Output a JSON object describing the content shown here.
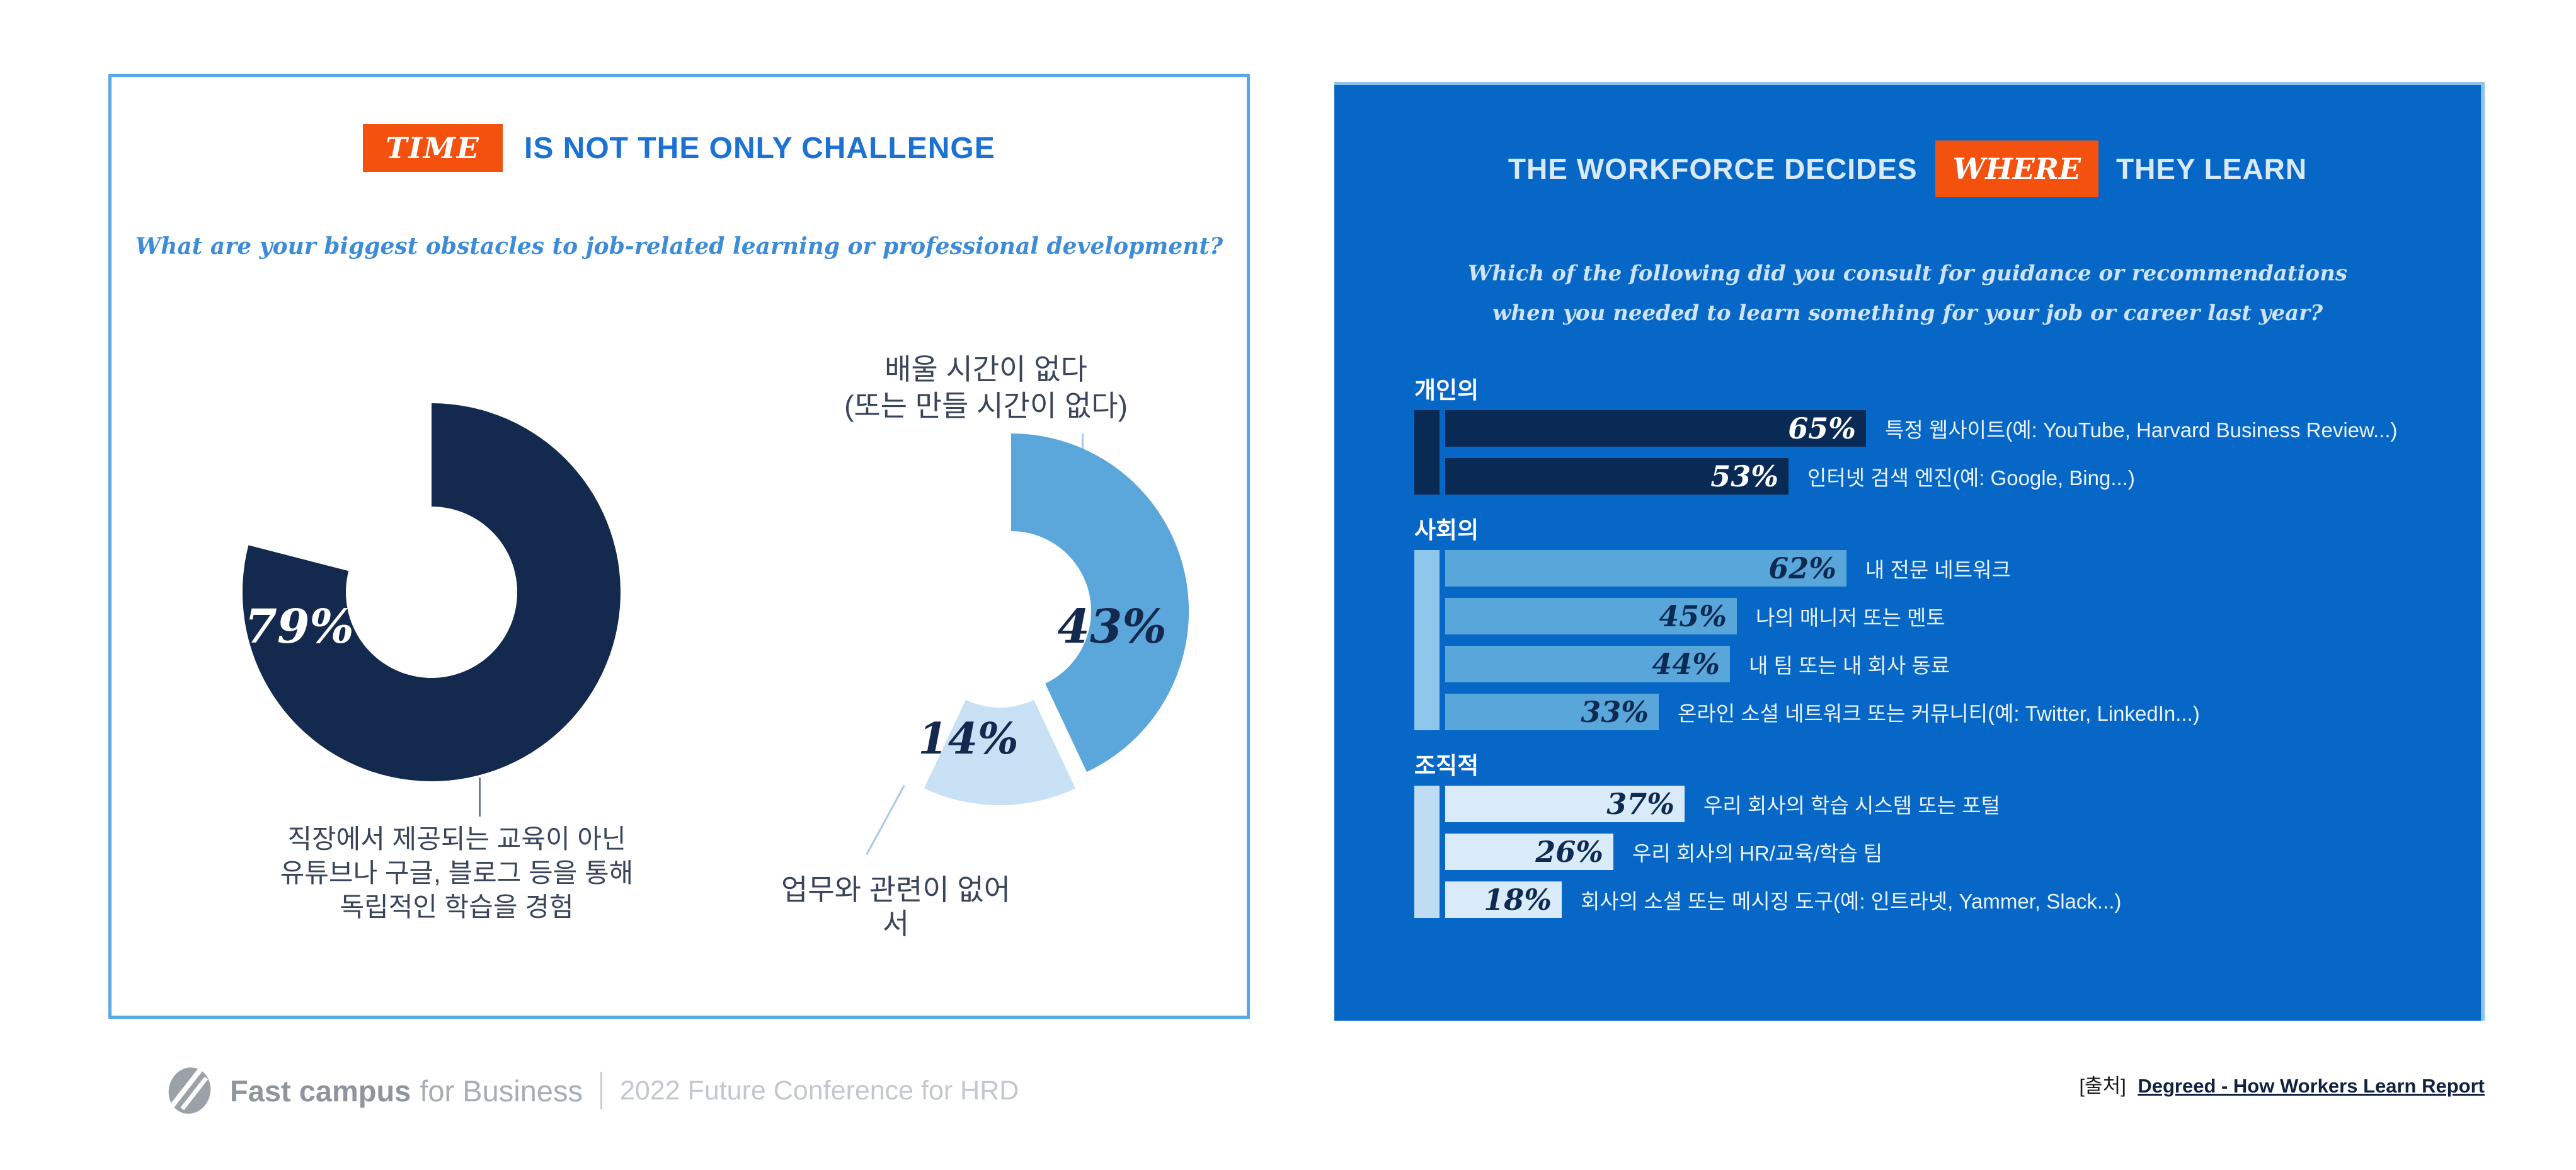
{
  "left_panel": {
    "title_highlight": "TIME",
    "title_rest": "IS NOT THE ONLY CHALLENGE",
    "subtitle": "What are your biggest obstacles to job-related learning or professional development?",
    "donut1": {
      "value_label": "79%",
      "caption_lines": [
        "직장에서 제공되는 교육이 아닌",
        "유튜브나 구글, 블로그 등을 통해",
        "독립적인 학습을 경험"
      ]
    },
    "donut2": {
      "value_main": "43%",
      "value_secondary": "14%",
      "top_label_lines": [
        "배울 시간이 없다",
        "(또는 만들 시간이 없다)"
      ],
      "bottom_label": "업무와 관련이 없어서"
    }
  },
  "right_panel": {
    "title_pre": "THE WORKFORCE DECIDES",
    "title_highlight": "WHERE",
    "title_post": "THEY LEARN",
    "subtitle_lines": [
      "Which of the following did you consult for guidance or recommendations",
      "when you needed to learn something for your job or career last year?"
    ],
    "source_prefix": "[출처]",
    "source_link": "Degreed - How Workers Learn Report"
  },
  "footer": {
    "logo_bold": "Fast campus",
    "logo_light": "for Business",
    "event": "2022 Future Conference for HRD"
  },
  "colors": {
    "accent_orange": "#F4500E",
    "navy": "#13294E",
    "panel_blue": "#0667C6",
    "panel_border_light": "#8AC4EC",
    "left_border": "#58A9E5",
    "title_blue": "#1B72D4",
    "medium_blue": "#5BA7DB",
    "pale_blue": "#C9E1F4"
  },
  "chart_data": [
    {
      "id": "obstacles-donut-primary",
      "type": "pie",
      "subtype": "donut",
      "unit": "%",
      "title": "TIME IS NOT THE ONLY CHALLENGE",
      "question": "What are your biggest obstacles to job-related learning or professional development?",
      "segments": [
        {
          "label": "직장에서 제공되는 교육이 아닌 유튜브나 구글, 블로그 등을 통해 독립적인 학습을 경험",
          "value": 79,
          "color": "#13294E"
        }
      ],
      "empty_remainder": 21
    },
    {
      "id": "obstacles-donut-secondary",
      "type": "pie",
      "subtype": "donut",
      "unit": "%",
      "segments": [
        {
          "label": "배울 시간이 없다 (또는 만들 시간이 없다)",
          "value": 43,
          "color": "#5BA7DB"
        },
        {
          "label": "업무와 관련이 없어서",
          "value": 14,
          "color": "#C9E1F4",
          "explode": [
            -18,
            26
          ]
        }
      ],
      "empty_remainder": 43
    },
    {
      "id": "consult-bars",
      "type": "bar",
      "orientation": "horizontal",
      "unit": "%",
      "xlim": [
        0,
        100
      ],
      "title": "THE WORKFORCE DECIDES WHERE THEY LEARN",
      "groups": [
        {
          "label": "개인의",
          "bar_color": "#0A2A56",
          "strip_color": "#0A2A56",
          "value_color": "#FFFFFF",
          "items": [
            {
              "label": "특정 웹사이트(예: YouTube, Harvard Business Review...)",
              "value": 65
            },
            {
              "label": "인터넷 검색 엔진(예: Google, Bing...)",
              "value": 53
            }
          ]
        },
        {
          "label": "사회의",
          "bar_color": "#59A6DB",
          "strip_color": "#8FC6EB",
          "value_color": "#0D2B52",
          "items": [
            {
              "label": "내 전문 네트워크",
              "value": 62
            },
            {
              "label": "나의 매니저 또는 멘토",
              "value": 45
            },
            {
              "label": "내 팀 또는 내 회사 동료",
              "value": 44
            },
            {
              "label": "온라인 소셜 네트워크 또는 커뮤니티(예: Twitter, LinkedIn...)",
              "value": 33
            }
          ]
        },
        {
          "label": "조직적",
          "bar_color": "#D9EAF8",
          "strip_color": "#BEDDF3",
          "value_color": "#0D2B52",
          "items": [
            {
              "label": "우리 회사의 학습 시스템 또는 포털",
              "value": 37
            },
            {
              "label": "우리 회사의 HR/교육/학습 팀",
              "value": 26
            },
            {
              "label": "회사의 소셜 또는 메시징 도구(예: 인트라넷, Yammer, Slack...)",
              "value": 18
            }
          ]
        }
      ]
    }
  ]
}
